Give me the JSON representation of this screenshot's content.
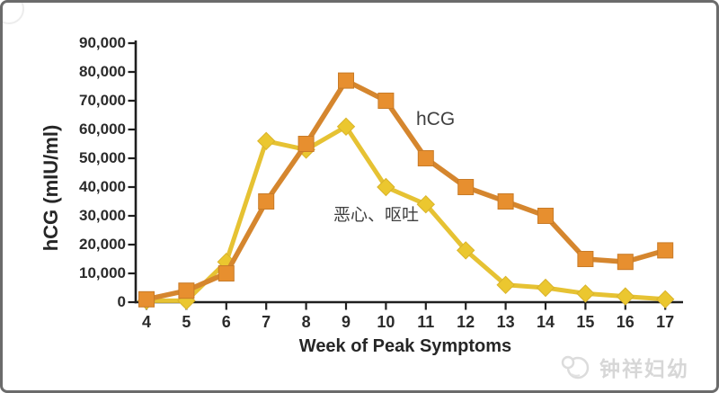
{
  "frame": {
    "border_color": "#6b6b6b",
    "background": "#ffffff"
  },
  "chart_data": {
    "type": "line",
    "title": "",
    "xlabel": "Week of Peak Symptoms",
    "ylabel": "hCG (mIU/ml)",
    "x": [
      4,
      5,
      6,
      7,
      8,
      9,
      10,
      11,
      12,
      13,
      14,
      15,
      16,
      17
    ],
    "x_tick_labels": [
      "4",
      "5",
      "6",
      "7",
      "8",
      "9",
      "10",
      "11",
      "12",
      "13",
      "14",
      "15",
      "16",
      "17"
    ],
    "y_ticks": [
      0,
      10000,
      20000,
      30000,
      40000,
      50000,
      60000,
      70000,
      80000,
      90000
    ],
    "y_tick_labels": [
      "0",
      "10,000",
      "20,000",
      "30,000",
      "40,000",
      "50,000",
      "60,000",
      "70,000",
      "80,000",
      "90,000"
    ],
    "xlim": [
      4,
      17
    ],
    "ylim": [
      0,
      90000
    ],
    "grid": false,
    "legend_position": "inline-annotations",
    "axis_color": "#1f1f1f",
    "series": [
      {
        "name": "恶心、呕吐",
        "marker": "diamond",
        "line_color": "#E6C233",
        "marker_color": "#EBC72F",
        "marker_edge": "#D9B32A",
        "values": [
          500,
          500,
          14000,
          56000,
          53000,
          61000,
          40000,
          34000,
          18000,
          6000,
          5000,
          3000,
          2000,
          1000
        ]
      },
      {
        "name": "hCG",
        "marker": "square",
        "line_color": "#D5862E",
        "marker_color": "#E78F2F",
        "marker_edge": "#C87B28",
        "values": [
          1000,
          4000,
          10000,
          35000,
          55000,
          77000,
          70000,
          50000,
          40000,
          35000,
          30000,
          15000,
          14000,
          18000
        ]
      }
    ],
    "annotations": [
      {
        "text": "hCG",
        "series": "hCG"
      },
      {
        "text": "恶心、呕吐",
        "series": "恶心、呕吐"
      }
    ]
  },
  "watermark": {
    "text": "钟祥妇幼",
    "logo": "crescent-face-logo"
  }
}
